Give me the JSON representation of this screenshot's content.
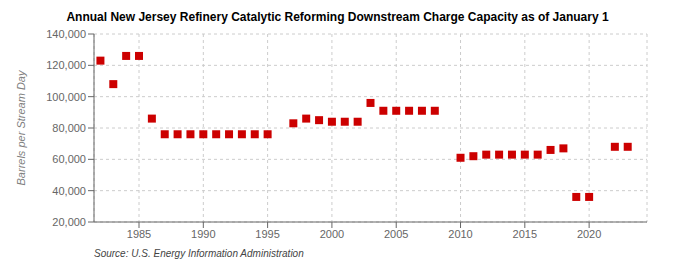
{
  "chart_data": {
    "type": "scatter",
    "title": "Annual New Jersey Refinery Catalytic Reforming Downstream Charge Capacity as of January 1",
    "ylabel": "Barrels per Stream Day",
    "annotation": "Source: U.S. Energy Information Administration",
    "color": "#cc0000",
    "marker": "square",
    "grid": true,
    "x": [
      1982,
      1983,
      1984,
      1985,
      1986,
      1987,
      1988,
      1989,
      1990,
      1991,
      1992,
      1993,
      1994,
      1995,
      1997,
      1998,
      1999,
      2000,
      2001,
      2002,
      2003,
      2004,
      2005,
      2006,
      2007,
      2008,
      2010,
      2011,
      2012,
      2013,
      2014,
      2015,
      2016,
      2017,
      2018,
      2019,
      2020,
      2022,
      2023
    ],
    "values": [
      123000,
      108000,
      126000,
      126000,
      86000,
      76000,
      76000,
      76000,
      76000,
      76000,
      76000,
      76000,
      76000,
      76000,
      83000,
      86000,
      85000,
      84000,
      84000,
      84000,
      96000,
      91000,
      91000,
      91000,
      91000,
      91000,
      61000,
      62000,
      63000,
      63000,
      63000,
      63000,
      63000,
      66000,
      67000,
      36000,
      36000,
      68000,
      68000
    ],
    "xlim": [
      1981.5,
      2024.5
    ],
    "xticks": [
      1985,
      1990,
      1995,
      2000,
      2005,
      2010,
      2015,
      2020
    ],
    "ylim": [
      20000,
      140000
    ],
    "yticks": [
      {
        "value": 20000,
        "label": "20,000"
      },
      {
        "value": 40000,
        "label": "40,000"
      },
      {
        "value": 60000,
        "label": "60,000"
      },
      {
        "value": 80000,
        "label": "80,000"
      },
      {
        "value": 100000,
        "label": "100,000"
      },
      {
        "value": 120000,
        "label": "120,000"
      },
      {
        "value": 140000,
        "label": "140,000"
      }
    ]
  }
}
